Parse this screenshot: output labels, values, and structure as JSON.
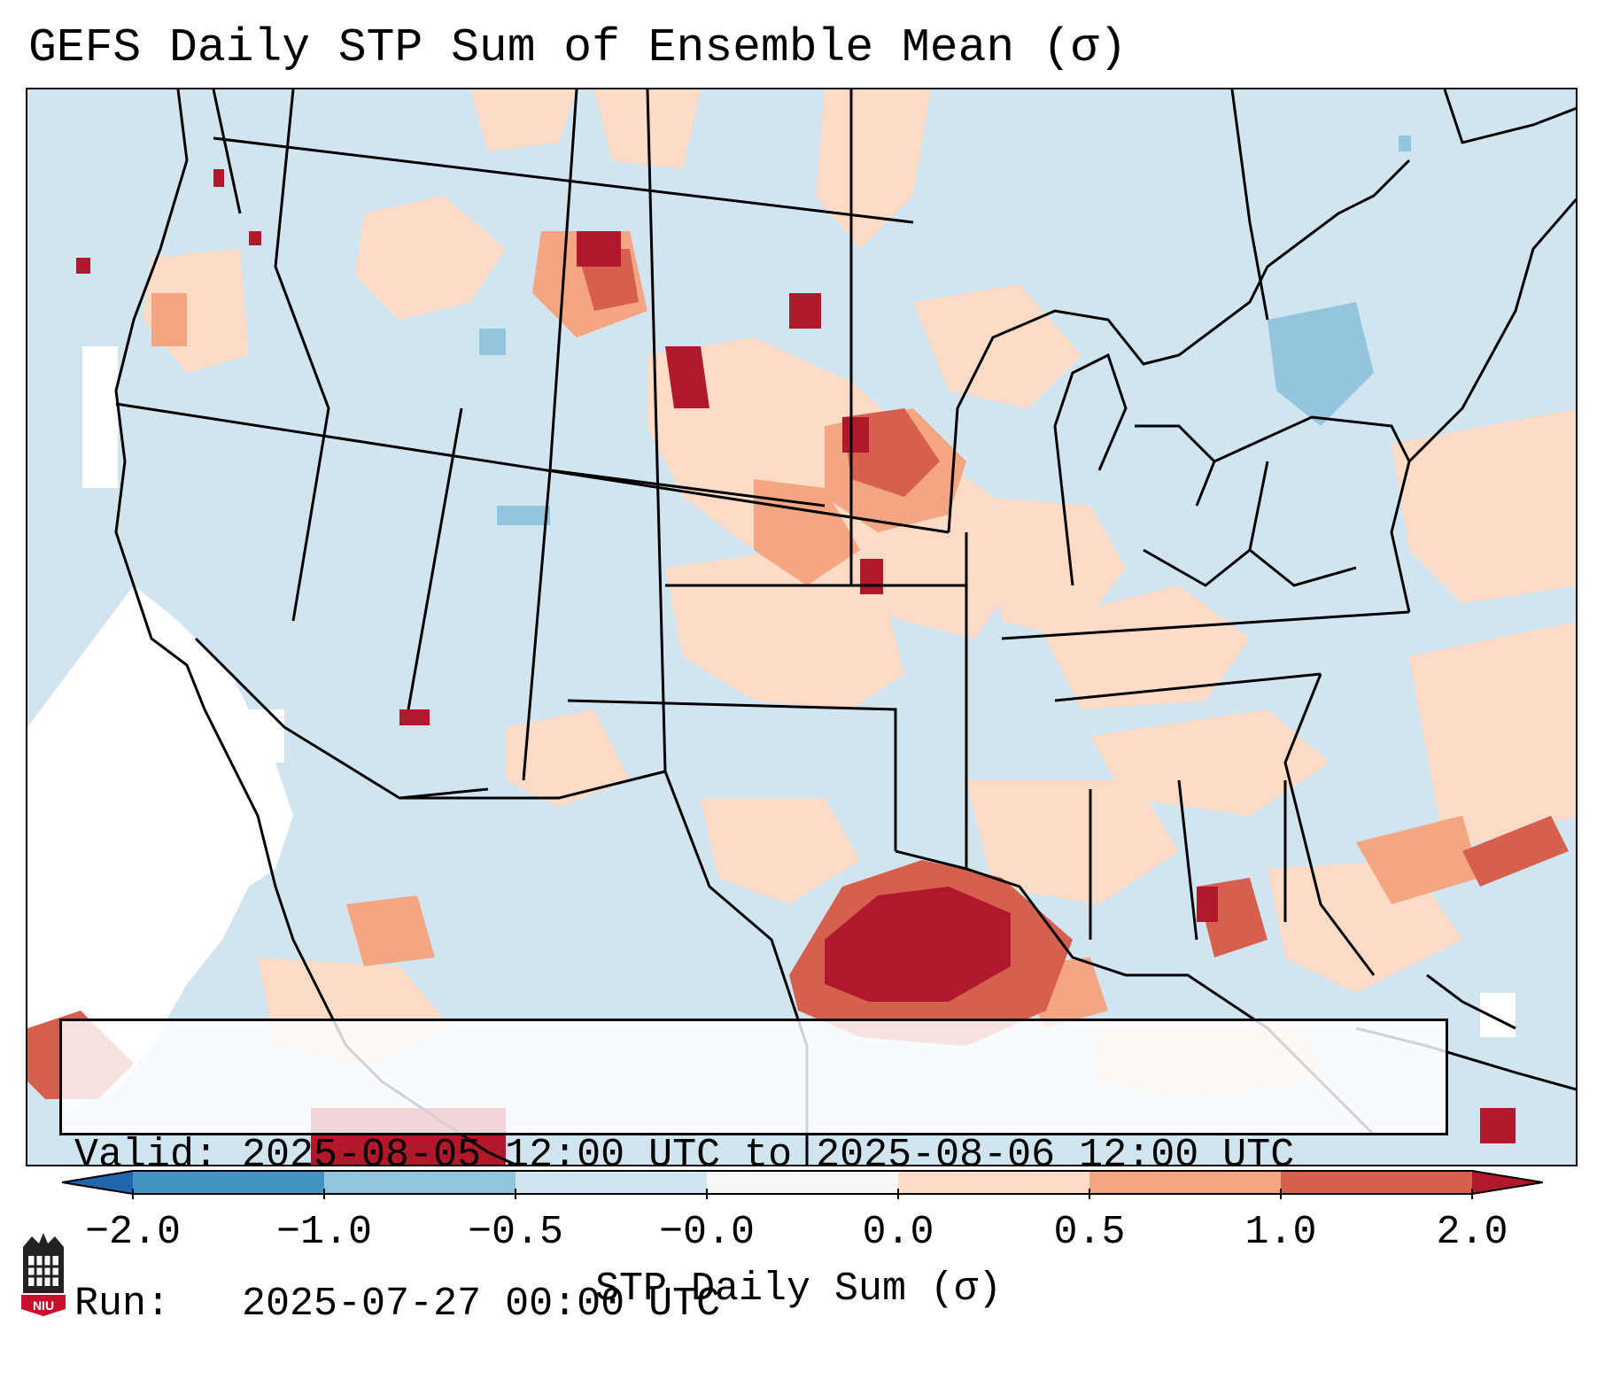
{
  "title": "GEFS Daily STP Sum of Ensemble Mean (σ)",
  "info": {
    "valid_line": "Valid: 2025-08-05 12:00 UTC to 2025-08-06 12:00 UTC",
    "run_line": "Run:   2025-07-27 00:00 UTC"
  },
  "colorbar": {
    "label": "STP Daily Sum (σ)",
    "ticks": [
      "−2.0",
      "−1.0",
      "−0.5",
      "−0.0",
      "0.0",
      "0.5",
      "1.0",
      "2.0"
    ],
    "bins": [
      {
        "color": "#4393c3"
      },
      {
        "color": "#92c5de"
      },
      {
        "color": "#d1e5f0"
      },
      {
        "color": "#f7f7f7"
      },
      {
        "color": "#fddbc7"
      },
      {
        "color": "#f4a582"
      },
      {
        "color": "#d6604d"
      }
    ],
    "under_color": "#2166ac",
    "over_color": "#b2182b"
  },
  "logo": {
    "text": "NIU",
    "color": "#c8102e"
  },
  "colors": {
    "background_field": "#d1e5f0",
    "neutral": "#ffffff",
    "light_positive": "#fddbc7",
    "moderate_positive": "#f4a582",
    "strong_positive": "#d6604d",
    "extreme_positive": "#b2182b",
    "light_negative": "#92c5de"
  }
}
